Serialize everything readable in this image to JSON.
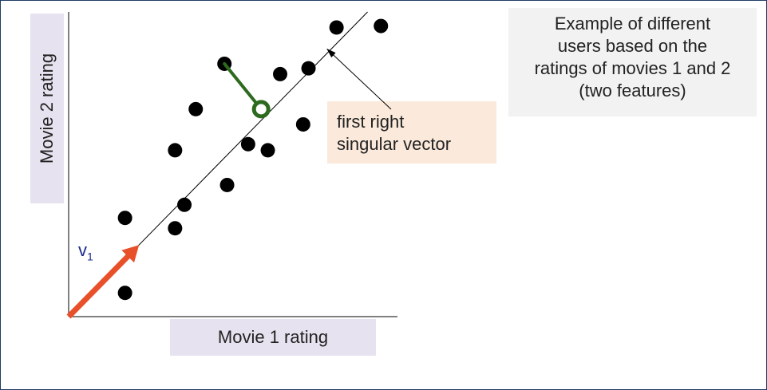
{
  "chart_data": {
    "type": "scatter",
    "xlabel": "Movie 1 rating",
    "ylabel": "Movie 2 rating",
    "xlim": [
      0,
      100
    ],
    "ylim": [
      0,
      100
    ],
    "grid": false,
    "points": [
      {
        "x": 16.9,
        "y": 32.4
      },
      {
        "x": 16.9,
        "y": 7.8
      },
      {
        "x": 31.9,
        "y": 29.0
      },
      {
        "x": 34.7,
        "y": 36.7
      },
      {
        "x": 47.5,
        "y": 43.2
      },
      {
        "x": 31.9,
        "y": 54.6
      },
      {
        "x": 38.1,
        "y": 68.1
      },
      {
        "x": 53.8,
        "y": 56.6
      },
      {
        "x": 59.7,
        "y": 54.6
      },
      {
        "x": 46.7,
        "y": 83.0
      },
      {
        "x": 63.4,
        "y": 79.6
      },
      {
        "x": 71.9,
        "y": 81.5
      },
      {
        "x": 70.3,
        "y": 63.1
      },
      {
        "x": 80.3,
        "y": 94.9
      },
      {
        "x": 93.6,
        "y": 95.4
      }
    ],
    "fit_line": {
      "x0": 0,
      "y0": 0,
      "x1": 89.6,
      "y1": 100
    },
    "projection": {
      "from": {
        "x": 46.7,
        "y": 83.0
      },
      "to": {
        "x": 57.7,
        "y": 68.1
      }
    },
    "vector": {
      "label": "v",
      "subscript": "1",
      "from": {
        "x": 0,
        "y": 0
      },
      "to": {
        "x": 21.1,
        "y": 23.5
      }
    },
    "annotations": [
      {
        "lines": [
          "first right",
          "singular vector"
        ],
        "points_to": {
          "x": 77.5,
          "y": 87.8
        }
      }
    ]
  },
  "description": [
    "Example of different",
    "users based on the",
    "ratings of movies 1 and 2",
    "(two features)"
  ],
  "colors": {
    "points": "#000000",
    "vector": "#e8502a",
    "projection": "#2d6a1e",
    "frame": "#1f3b63",
    "label_bg": "#e6e2ef",
    "annot_bg": "#fbeadb",
    "desc_bg": "#f2f2f2",
    "vector_label": "#1b2a8c"
  }
}
